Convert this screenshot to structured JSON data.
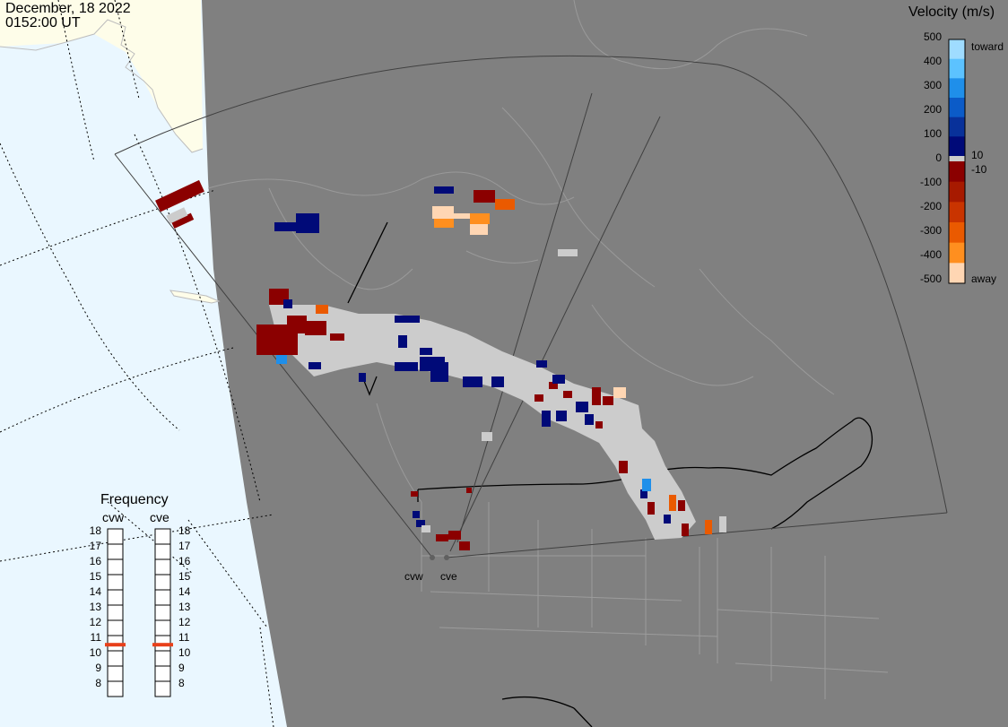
{
  "header": {
    "date": "December, 18 2022",
    "time": "0152:00 UT"
  },
  "velocity_scale": {
    "title": "Velocity (m/s)",
    "ticks": [
      "500",
      "400",
      "300",
      "200",
      "100",
      "0",
      "-100",
      "-200",
      "-300",
      "-400",
      "-500"
    ],
    "side_labels": {
      "top": "toward",
      "pos": "10",
      "neg": "-10",
      "bottom": "away"
    },
    "colors": {
      "toward": [
        "#9fdcff",
        "#5cc2ff",
        "#1f8fea",
        "#0b5bc8",
        "#08319a",
        "#000a78"
      ],
      "away": [
        "#8b0000",
        "#a71a00",
        "#c93400",
        "#ea5a00",
        "#ff8f1f",
        "#ffd6b3"
      ]
    }
  },
  "frequency": {
    "title": "Frequency",
    "columns": [
      {
        "name": "cvw",
        "selected": 11
      },
      {
        "name": "cve",
        "selected": 11
      }
    ],
    "levels": [
      "18",
      "17",
      "16",
      "15",
      "14",
      "13",
      "12",
      "11",
      "10",
      "9",
      "8"
    ]
  },
  "sites": [
    {
      "name": "cvw"
    },
    {
      "name": "cve"
    }
  ],
  "colors": {
    "background": "#808080",
    "ocean": "#eaf7ff",
    "land_light": "#fefde9",
    "ground_scatter": "#cccccc",
    "fov_outline": "#555555",
    "border": "#000000",
    "coast": "#a6a6a6"
  }
}
